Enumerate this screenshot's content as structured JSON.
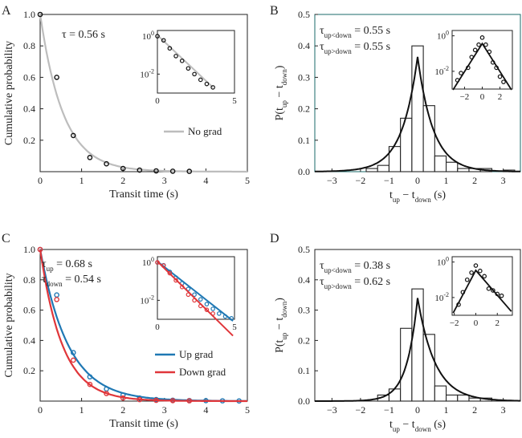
{
  "chart_data": [
    {
      "panel": "A",
      "type": "scatter",
      "xlabel": "Transit time (s)",
      "ylabel": "Cumulative probability",
      "xlim": [
        0,
        5
      ],
      "ylim": [
        0,
        1
      ],
      "xticks": [
        "0",
        "1",
        "2",
        "3",
        "4",
        "5"
      ],
      "yticks": [
        "0.2",
        "0.4",
        "0.6",
        "0.8",
        "1.0"
      ],
      "annotation": "τ = 0.56 s",
      "legend": [
        {
          "label": "No grad",
          "color": "#bdbdbd"
        }
      ],
      "fit_tau": 0.56,
      "points": {
        "x": [
          0,
          0.4,
          0.8,
          1.2,
          1.6,
          2.0,
          2.4,
          2.8,
          3.2,
          3.6
        ],
        "y": [
          1.0,
          0.6,
          0.23,
          0.09,
          0.05,
          0.02,
          0.01,
          0.005,
          0.003,
          0.002
        ]
      },
      "inset": {
        "xlim": [
          0,
          5
        ],
        "ylim_log": [
          -3,
          0.3
        ],
        "xticks": [
          "0",
          "5"
        ],
        "yticks": [
          {
            "base": "10",
            "exp": "0"
          },
          {
            "base": "10",
            "exp": "-2"
          }
        ],
        "points_log": [
          0,
          -0.22,
          -0.64,
          -1.05,
          -1.3,
          -1.7,
          -2.0,
          -2.3,
          -2.52,
          -2.7
        ]
      }
    },
    {
      "panel": "B",
      "type": "bar",
      "xlabel": {
        "main": "t",
        "sub1": "up",
        "mid": " − t",
        "sub2": "down",
        "tail": " (s)"
      },
      "ylabel": {
        "main": "P(t",
        "sub1": "up",
        "mid": " − t",
        "sub2": "down",
        "tail": ")"
      },
      "xlim": [
        -3.6,
        3.6
      ],
      "ylim": [
        0,
        0.5
      ],
      "xticks": [
        "−3",
        "−2",
        "−1",
        "0",
        "1",
        "2",
        "3"
      ],
      "yticks": [
        "0.0",
        "0.1",
        "0.2",
        "0.3",
        "0.4",
        "0.5"
      ],
      "annotation_lines": [
        {
          "main": "τ",
          "sub": "up<down",
          "val": " = 0.55 s"
        },
        {
          "main": "τ",
          "sub": "up>down",
          "val": " = 0.55 s"
        }
      ],
      "bin_width": 0.4,
      "bins": [
        -3.2,
        -2.8,
        -2.4,
        -2.0,
        -1.6,
        -1.2,
        -0.8,
        -0.4,
        0.0,
        0.4,
        0.8,
        1.2,
        1.6,
        2.0,
        2.4,
        2.8,
        3.2
      ],
      "values": [
        0.0,
        0.0,
        0.0,
        0.0,
        0.01,
        0.02,
        0.08,
        0.17,
        0.4,
        0.21,
        0.05,
        0.03,
        0.01,
        0.01,
        0.01,
        0.0,
        0.005
      ],
      "fit_peak": 0.365,
      "fit_tau_left": 0.55,
      "fit_tau_right": 0.55,
      "inset": {
        "xlim": [
          -3.4,
          3.4
        ],
        "ylim_log": [
          -3,
          0.3
        ],
        "xticks": [
          "−2",
          "0",
          "2"
        ],
        "yticks": [
          {
            "base": "10",
            "exp": "0"
          },
          {
            "base": "10",
            "exp": "-2"
          }
        ],
        "points_x": [
          -2.8,
          -2.4,
          -1.6,
          -1.2,
          -0.8,
          -0.4,
          0.0,
          0.4,
          0.8,
          1.2,
          1.6,
          2.0,
          2.4
        ],
        "points_log": [
          -2.5,
          -2.1,
          -1.8,
          -1.2,
          -0.8,
          -0.5,
          -0.1,
          -0.5,
          -0.9,
          -1.5,
          -1.8,
          -2.3,
          -2.6
        ]
      }
    },
    {
      "panel": "C",
      "type": "scatter",
      "xlabel": "Transit time (s)",
      "ylabel": "Cumulative probability",
      "xlim": [
        0,
        5
      ],
      "ylim": [
        0,
        1
      ],
      "xticks": [
        "0",
        "1",
        "2",
        "3",
        "4",
        "5"
      ],
      "yticks": [
        "0.2",
        "0.4",
        "0.6",
        "0.8",
        "1.0"
      ],
      "annotation_lines": [
        {
          "main": "τ",
          "sub": "up",
          "val": " = 0.68 s"
        },
        {
          "main": "τ",
          "sub": "down",
          "val": " = 0.54 s"
        }
      ],
      "legend": [
        {
          "label": "Up grad",
          "color": "#1f78b4"
        },
        {
          "label": "Down grad",
          "color": "#e0363a"
        }
      ],
      "series": [
        {
          "name": "Up grad",
          "color": "#1f78b4",
          "tau": 0.68,
          "x": [
            0,
            0.4,
            0.8,
            1.2,
            1.6,
            2.0,
            2.4,
            2.8,
            3.2,
            3.6,
            4.0,
            4.4,
            4.8
          ],
          "y": [
            1.0,
            0.7,
            0.32,
            0.16,
            0.08,
            0.04,
            0.02,
            0.01,
            0.006,
            0.004,
            0.003,
            0.002,
            0.001
          ]
        },
        {
          "name": "Down grad",
          "color": "#e0363a",
          "tau": 0.54,
          "x": [
            0,
            0.4,
            0.8,
            1.2,
            1.6,
            2.0,
            2.4,
            2.8,
            3.2,
            3.6
          ],
          "y": [
            1.0,
            0.67,
            0.27,
            0.11,
            0.05,
            0.02,
            0.01,
            0.005,
            0.003,
            0.002
          ]
        }
      ],
      "inset": {
        "xlim": [
          0,
          5
        ],
        "ylim_log": [
          -3,
          0.3
        ],
        "xticks": [
          "0",
          "5"
        ],
        "yticks": [
          {
            "base": "10",
            "exp": "0"
          },
          {
            "base": "10",
            "exp": "-2"
          }
        ],
        "series_log": [
          {
            "color": "#1f78b4",
            "x": [
              0,
              0.4,
              0.8,
              1.2,
              1.6,
              2.0,
              2.4,
              2.8,
              3.2,
              3.6,
              4.0,
              4.4,
              4.8
            ],
            "y": [
              0,
              -0.15,
              -0.5,
              -0.8,
              -1.1,
              -1.4,
              -1.7,
              -1.95,
              -2.2,
              -2.45,
              -2.7,
              -2.85,
              -2.95
            ],
            "slope": -0.64
          },
          {
            "color": "#e0363a",
            "x": [
              0,
              0.4,
              0.8,
              1.2,
              1.6,
              2.0,
              2.4,
              2.8,
              3.2,
              3.6
            ],
            "y": [
              0,
              -0.17,
              -0.57,
              -0.95,
              -1.3,
              -1.7,
              -2.0,
              -2.3,
              -2.5,
              -2.7
            ],
            "slope": -0.8
          }
        ]
      }
    },
    {
      "panel": "D",
      "type": "bar",
      "xlabel": {
        "main": "t",
        "sub1": "up",
        "mid": " − t",
        "sub2": "down",
        "tail": " (s)"
      },
      "ylabel": {
        "main": "P(t",
        "sub1": "up",
        "mid": " − t",
        "sub2": "down",
        "tail": ")"
      },
      "xlim": [
        -3.6,
        3.6
      ],
      "ylim": [
        0,
        0.5
      ],
      "xticks": [
        "−3",
        "−2",
        "−1",
        "0",
        "1",
        "2",
        "3"
      ],
      "yticks": [
        "0.0",
        "0.1",
        "0.2",
        "0.3",
        "0.4",
        "0.5"
      ],
      "annotation_lines": [
        {
          "main": "τ",
          "sub": "up<down",
          "val": " = 0.38 s"
        },
        {
          "main": "τ",
          "sub": "up>down",
          "val": " = 0.62 s"
        }
      ],
      "bin_width": 0.4,
      "bins": [
        -3.2,
        -2.8,
        -2.4,
        -2.0,
        -1.6,
        -1.2,
        -0.8,
        -0.4,
        0.0,
        0.4,
        0.8,
        1.2,
        1.6,
        2.0,
        2.4,
        2.8,
        3.2
      ],
      "values": [
        0.0,
        0.0,
        0.0,
        0.0,
        0.0,
        0.02,
        0.04,
        0.24,
        0.37,
        0.22,
        0.05,
        0.02,
        0.02,
        0.01,
        0.01,
        0.0,
        0.0
      ],
      "fit_peak": 0.34,
      "fit_tau_left": 0.38,
      "fit_tau_right": 0.62,
      "inset": {
        "xlim": [
          -2.2,
          3.4
        ],
        "ylim_log": [
          -3,
          0.3
        ],
        "xticks": [
          "−2",
          "0",
          "2"
        ],
        "yticks": [
          {
            "base": "10",
            "exp": "0"
          },
          {
            "base": "10",
            "exp": "-2"
          }
        ],
        "points_x": [
          -1.6,
          -1.2,
          -0.8,
          -0.4,
          0.0,
          0.4,
          0.8,
          1.2,
          1.6,
          2.0,
          2.4
        ],
        "points_log": [
          -2.4,
          -1.7,
          -1.0,
          -0.6,
          -0.2,
          -0.5,
          -0.8,
          -1.5,
          -1.6,
          -1.8,
          -1.9
        ]
      }
    }
  ]
}
